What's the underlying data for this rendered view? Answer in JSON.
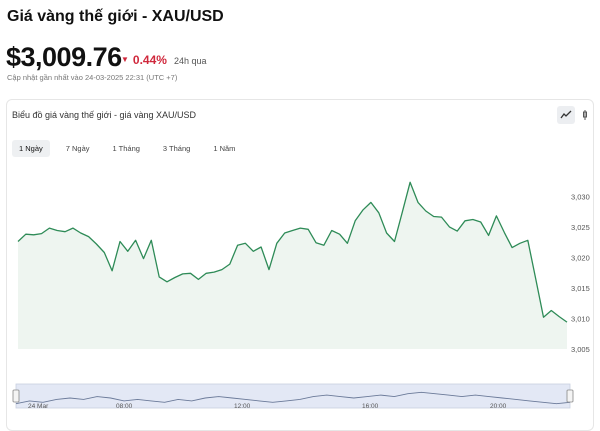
{
  "page": {
    "title": "Giá vàng thế giới - XAU/USD",
    "price": "$3,009.76",
    "change": "0.44%",
    "change_period": "24h qua",
    "updated": "Cập nhật gần nhất vào 24-03-2025 22:31 (UTC +7)"
  },
  "chart_card": {
    "title": "Biểu đồ giá vàng thế giới - giá vàng XAU/USD",
    "tabs": [
      {
        "label": "1 Ngày",
        "active": true
      },
      {
        "label": "7 Ngày",
        "active": false
      },
      {
        "label": "1 Tháng",
        "active": false
      },
      {
        "label": "3 Tháng",
        "active": false
      },
      {
        "label": "1 Năm",
        "active": false
      }
    ],
    "icons": {
      "line_chart": "line-chart-icon",
      "other": "chart-type-icon"
    }
  },
  "colors": {
    "line": "#2e8b57",
    "fill": "#eef5f0",
    "down": "#d0283c"
  },
  "chart_data": {
    "type": "area",
    "x_range": [
      "24 Mar 00:00",
      "24 Mar 23:59"
    ],
    "y": [
      3022.6,
      3023.8,
      3023.7,
      3023.9,
      3024.8,
      3024.4,
      3024.2,
      3024.8,
      3024.0,
      3023.4,
      3022.2,
      3020.8,
      3017.8,
      3022.6,
      3021.0,
      3022.8,
      3019.8,
      3022.8,
      3016.8,
      3016.0,
      3016.7,
      3017.3,
      3017.4,
      3016.4,
      3017.4,
      3017.6,
      3018.0,
      3018.9,
      3022.0,
      3022.3,
      3021.0,
      3021.7,
      3018.0,
      3022.3,
      3024.0,
      3024.4,
      3024.8,
      3024.6,
      3022.4,
      3022.0,
      3024.4,
      3023.8,
      3022.3,
      3026.0,
      3027.8,
      3029.0,
      3027.3,
      3024.0,
      3022.6,
      3027.4,
      3032.3,
      3029.0,
      3027.6,
      3026.7,
      3026.6,
      3025.0,
      3024.3,
      3026.0,
      3026.2,
      3025.8,
      3023.6,
      3026.8,
      3024.1,
      3021.6,
      3022.3,
      3022.8,
      3016.6,
      3010.2,
      3011.3,
      3010.3,
      3009.4
    ],
    "yaxis": {
      "range": [
        3005,
        3033
      ],
      "ticks": [
        "3,005",
        "3,010",
        "3,015",
        "3,020",
        "3,025",
        "3,030"
      ],
      "position": "right"
    },
    "navigator": {
      "ticks": [
        "24 Mar",
        "08:00",
        "12:00",
        "16:00",
        "20:00"
      ],
      "y": [
        3011,
        3013,
        3012,
        3014,
        3015,
        3014,
        3016,
        3015,
        3013,
        3014,
        3013,
        3012,
        3014,
        3013,
        3015,
        3016,
        3015,
        3014,
        3013,
        3012,
        3013,
        3014,
        3016,
        3017,
        3016,
        3015,
        3016,
        3017,
        3016,
        3018,
        3019,
        3018,
        3017,
        3016,
        3017,
        3016,
        3015,
        3014,
        3013,
        3012,
        3011,
        3012
      ]
    },
    "grid": false,
    "legend": "none"
  }
}
